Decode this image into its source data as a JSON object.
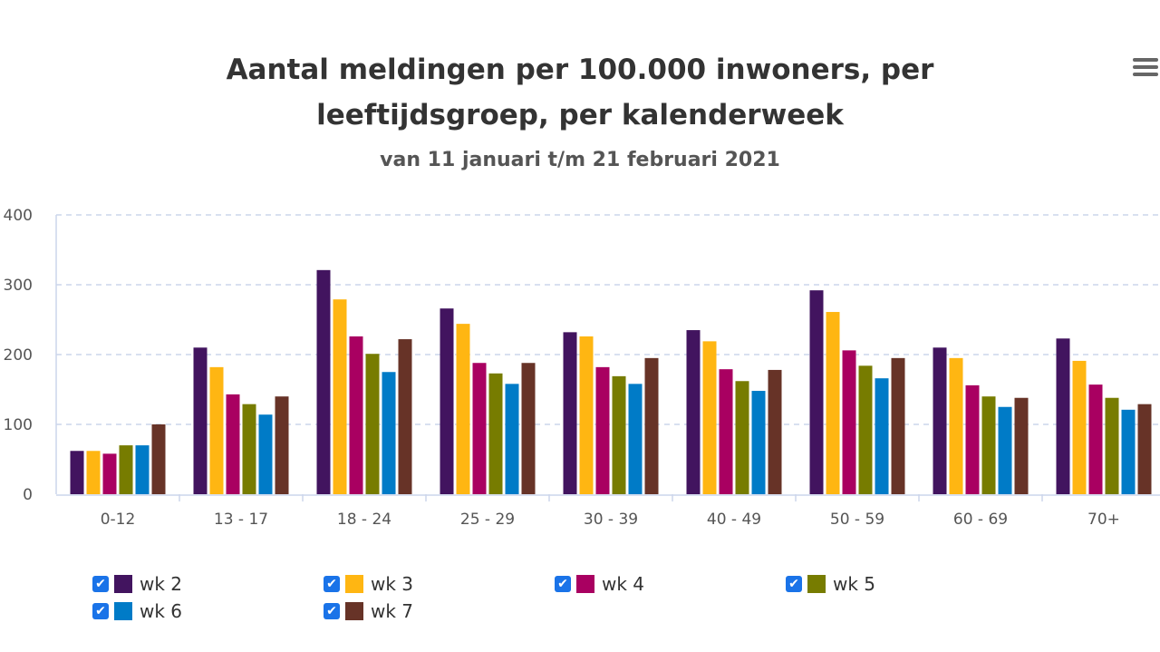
{
  "chart_data": {
    "type": "bar",
    "title": "Aantal meldingen per 100.000 inwoners, per leeftijdsgroep, per kalenderweek",
    "title_lines": [
      "Aantal meldingen per 100.000 inwoners, per",
      "leeftijdsgroep, per kalenderweek"
    ],
    "subtitle": "van 11 januari t/m 21 februari 2021",
    "xlabel": "",
    "ylabel": "",
    "ylim": [
      0,
      400
    ],
    "yticks": [
      "0",
      "100",
      "200",
      "300",
      "400"
    ],
    "grid": true,
    "legend_placement": "bottom-left",
    "categories": [
      "0-12",
      "13 - 17",
      "18 - 24",
      "25 - 29",
      "30 - 39",
      "40 - 49",
      "50 - 59",
      "60 - 69",
      "70+"
    ],
    "series": [
      {
        "name": "wk 2",
        "color": "#42145f",
        "values": [
          62,
          210,
          321,
          266,
          232,
          235,
          292,
          210,
          223
        ]
      },
      {
        "name": "wk 3",
        "color": "#ffb612",
        "values": [
          62,
          182,
          279,
          244,
          226,
          219,
          261,
          195,
          191
        ]
      },
      {
        "name": "wk 4",
        "color": "#a90061",
        "values": [
          58,
          143,
          226,
          188,
          182,
          179,
          206,
          156,
          157
        ]
      },
      {
        "name": "wk 5",
        "color": "#777c00",
        "values": [
          70,
          129,
          201,
          173,
          169,
          162,
          184,
          140,
          138
        ]
      },
      {
        "name": "wk 6",
        "color": "#007bc7",
        "values": [
          70,
          114,
          175,
          158,
          158,
          148,
          166,
          125,
          121
        ]
      },
      {
        "name": "wk 7",
        "color": "#673327",
        "values": [
          100,
          140,
          222,
          188,
          195,
          178,
          195,
          138,
          129
        ]
      }
    ]
  },
  "menu_icon": "hamburger-menu-icon"
}
